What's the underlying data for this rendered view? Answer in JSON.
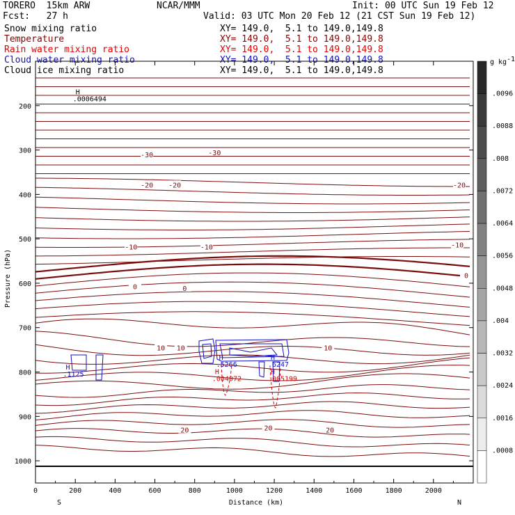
{
  "header": {
    "model": "TORERO  15km ARW",
    "center": "NCAR/MMM",
    "init": "Init: 00 UTC Sun 19 Feb 12",
    "fcst": "Fcst:   27 h",
    "valid": "Valid: 03 UTC Mon 20 Feb 12 (21 CST Sun 19 Feb 12)"
  },
  "fields": [
    {
      "name": "Snow mixing ratio",
      "xy": "XY= 149.0,  5.1 to 149.0,149.8",
      "color": "#000000"
    },
    {
      "name": "Temperature",
      "xy": "XY= 149.0,  5.1 to 149.0,149.8",
      "color": "#8b0000"
    },
    {
      "name": "Rain water mixing ratio",
      "xy": "XY= 149.0,  5.1 to 149.0,149.8",
      "color": "#e00000"
    },
    {
      "name": "Cloud water mixing ratio",
      "xy": "XY= 149.0,  5.1 to 149.0,149.8",
      "color": "#1010c0"
    },
    {
      "name": "Cloud ice mixing ratio",
      "xy": "XY= 149.0,  5.1 to 149.0,149.8",
      "color": "#000000"
    }
  ],
  "chart_data": {
    "type": "contour",
    "xlabel": "Distance (km)",
    "ylabel": "Pressure (hPa)",
    "xlim": [
      0,
      2200
    ],
    "ylim": [
      1050,
      100
    ],
    "x_ticks": [
      0,
      200,
      400,
      600,
      800,
      1000,
      1200,
      1400,
      1600,
      1800,
      2000
    ],
    "y_ticks": [
      200,
      300,
      400,
      500,
      600,
      700,
      800,
      900,
      1000
    ],
    "left_end": "S",
    "right_end": "N",
    "temperature_labels": [
      {
        "text": "-30",
        "x": 560,
        "p": 310
      },
      {
        "text": "-30",
        "x": 900,
        "p": 305
      },
      {
        "text": "-20",
        "x": 560,
        "p": 378
      },
      {
        "text": "-20",
        "x": 700,
        "p": 378
      },
      {
        "text": "-20",
        "x": 2130,
        "p": 378
      },
      {
        "text": "-10",
        "x": 480,
        "p": 518
      },
      {
        "text": "-10",
        "x": 860,
        "p": 518
      },
      {
        "text": "-10",
        "x": 2120,
        "p": 513
      },
      {
        "text": "0",
        "x": 500,
        "p": 607
      },
      {
        "text": "0",
        "x": 750,
        "p": 611
      },
      {
        "text": "0",
        "x": 2165,
        "p": 582
      },
      {
        "text": "10",
        "x": 630,
        "p": 745
      },
      {
        "text": "10",
        "x": 730,
        "p": 745
      },
      {
        "text": "10",
        "x": 1470,
        "p": 745
      },
      {
        "text": "20",
        "x": 750,
        "p": 930
      },
      {
        "text": "20",
        "x": 1170,
        "p": 925
      },
      {
        "text": "20",
        "x": 1480,
        "p": 930
      }
    ],
    "maxima": [
      {
        "field": "Snow mixing ratio",
        "text": ".0006494",
        "x": 230,
        "p": 190,
        "color": "#000000"
      },
      {
        "field": "Cloud water mixing ratio",
        "text": ".1125",
        "x": 180,
        "p": 810,
        "color": "#1010c0"
      },
      {
        "field": "Cloud water mixing ratio",
        "text": ".5266",
        "x": 950,
        "p": 788,
        "color": "#1010c0"
      },
      {
        "field": "Cloud water mixing ratio",
        "text": ".6247",
        "x": 1210,
        "p": 788,
        "color": "#1010c0"
      },
      {
        "field": "Rain water mixing ratio",
        "text": ".004072",
        "x": 930,
        "p": 820,
        "color": "#e00000"
      },
      {
        "field": "Rain water mixing ratio",
        "text": ".005199",
        "x": 1210,
        "p": 820,
        "color": "#e00000"
      }
    ],
    "colorbar": {
      "unit": "g kg",
      "unit_exp": "-1",
      "labels": [
        ".0096",
        ".0088",
        ".008",
        ".0072",
        ".0064",
        ".0056",
        ".0048",
        ".004",
        ".0032",
        ".0024",
        ".0016",
        ".0008"
      ]
    }
  }
}
